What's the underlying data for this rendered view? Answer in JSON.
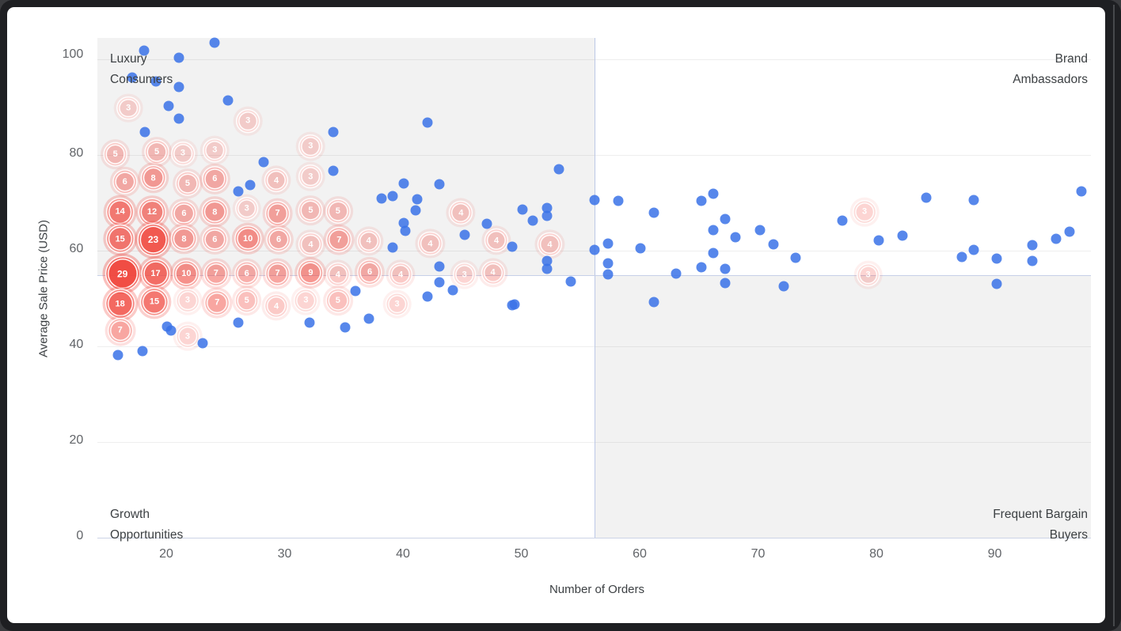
{
  "window": {
    "kind": "chart screenshot frame"
  },
  "quadrant_labels": {
    "top_left": "Luxury Consumers",
    "top_right": "Brand Ambassadors",
    "bottom_left": "Growth Opportunities",
    "bottom_right": "Frequent Bargain Buyers"
  },
  "chart_data": {
    "type": "scatter",
    "xlabel": "Number of Orders",
    "ylabel": "Average Sale Price (USD)",
    "x_ticks": [
      20,
      30,
      40,
      50,
      60,
      70,
      80,
      90
    ],
    "y_ticks": [
      0,
      20,
      40,
      60,
      80,
      100
    ],
    "xlim": [
      14.2,
      98.1
    ],
    "ylim": [
      0,
      104.5
    ],
    "grid": "horizontal-only",
    "legend": "none",
    "colors": {
      "point": "#4285F4",
      "point_opacity": 0.85,
      "cluster_base": "#F04137",
      "quadrant_shade": "rgba(32,33,36,0.057)",
      "divider_line": "#BCC8E6",
      "label_text": "#3C4043",
      "tick_text": "#616468"
    },
    "quadrants": {
      "x_split": 56.2,
      "y_split": 54.9,
      "shaded": [
        "top_left",
        "bottom_right"
      ],
      "top_left": {
        "label": "Luxury Consumers"
      },
      "top_right": {
        "label": "Brand Ambassadors"
      },
      "bottom_left": {
        "label": "Growth Opportunities"
      },
      "bottom_right": {
        "label": "Frequent Bargain Buyers"
      }
    },
    "series": [
      {
        "name": "individual-customers",
        "mark": "point",
        "points": [
          [
            24.1,
            103.5
          ],
          [
            18.1,
            101.8
          ],
          [
            21.1,
            100.3
          ],
          [
            17.1,
            96.2
          ],
          [
            19.1,
            95.4
          ],
          [
            21.1,
            94.2
          ],
          [
            25.2,
            91.4
          ],
          [
            20.2,
            90.2
          ],
          [
            21.1,
            87.6
          ],
          [
            18.2,
            84.8
          ],
          [
            34.1,
            84.8
          ],
          [
            42.1,
            86.8
          ],
          [
            28.2,
            78.5
          ],
          [
            34.1,
            76.7
          ],
          [
            26.1,
            72.4
          ],
          [
            27.1,
            73.7
          ],
          [
            38.2,
            70.9
          ],
          [
            39.1,
            71.4
          ],
          [
            40.1,
            74.0
          ],
          [
            43.1,
            73.9
          ],
          [
            41.2,
            70.7
          ],
          [
            41.1,
            68.4
          ],
          [
            40.1,
            65.8
          ],
          [
            40.2,
            64.1
          ],
          [
            39.1,
            60.7
          ],
          [
            53.2,
            77.0
          ],
          [
            50.1,
            68.6
          ],
          [
            52.2,
            68.9
          ],
          [
            52.2,
            67.3
          ],
          [
            51.0,
            66.3
          ],
          [
            47.1,
            65.6
          ],
          [
            45.2,
            63.3
          ],
          [
            49.2,
            60.8
          ],
          [
            52.2,
            57.9
          ],
          [
            52.2,
            56.2
          ],
          [
            54.2,
            53.6
          ],
          [
            43.1,
            56.7
          ],
          [
            43.1,
            53.4
          ],
          [
            44.2,
            51.7
          ],
          [
            42.1,
            50.4
          ],
          [
            49.2,
            48.6
          ],
          [
            49.4,
            48.8
          ],
          [
            36.0,
            51.6
          ],
          [
            15.9,
            38.2
          ],
          [
            18.0,
            39.0
          ],
          [
            20.1,
            44.1
          ],
          [
            20.4,
            43.3
          ],
          [
            23.1,
            40.7
          ],
          [
            26.1,
            45.0
          ],
          [
            32.1,
            45.0
          ],
          [
            35.1,
            44.0
          ],
          [
            37.1,
            45.8
          ],
          [
            56.2,
            70.6
          ],
          [
            58.2,
            70.4
          ],
          [
            61.2,
            67.9
          ],
          [
            65.2,
            70.4
          ],
          [
            66.2,
            71.9
          ],
          [
            67.2,
            66.6
          ],
          [
            66.2,
            64.3
          ],
          [
            68.1,
            62.8
          ],
          [
            70.2,
            64.3
          ],
          [
            71.3,
            61.3
          ],
          [
            56.2,
            60.2
          ],
          [
            57.3,
            61.5
          ],
          [
            60.1,
            60.5
          ],
          [
            66.2,
            59.5
          ],
          [
            73.2,
            58.5
          ],
          [
            57.3,
            57.4
          ],
          [
            57.3,
            55.0
          ],
          [
            63.1,
            55.2
          ],
          [
            65.2,
            56.5
          ],
          [
            67.2,
            56.2
          ],
          [
            67.2,
            53.2
          ],
          [
            72.2,
            52.6
          ],
          [
            61.2,
            49.3
          ],
          [
            77.1,
            66.3
          ],
          [
            84.2,
            71.1
          ],
          [
            88.2,
            70.6
          ],
          [
            97.3,
            72.4
          ],
          [
            80.2,
            62.1
          ],
          [
            82.2,
            63.1
          ],
          [
            87.2,
            58.7
          ],
          [
            88.2,
            60.2
          ],
          [
            90.2,
            58.3
          ],
          [
            93.2,
            61.2
          ],
          [
            93.2,
            57.9
          ],
          [
            95.2,
            62.5
          ],
          [
            96.3,
            64.0
          ],
          [
            90.2,
            53.1
          ]
        ]
      },
      {
        "name": "clustered-customers",
        "mark": "labeled-bubble",
        "points": [
          {
            "x": 16.8,
            "y": 89.8,
            "count": 3
          },
          {
            "x": 26.9,
            "y": 87.1,
            "count": 3
          },
          {
            "x": 15.7,
            "y": 80.2,
            "count": 5
          },
          {
            "x": 19.2,
            "y": 80.7,
            "count": 5
          },
          {
            "x": 21.4,
            "y": 80.3,
            "count": 3
          },
          {
            "x": 24.1,
            "y": 81.0,
            "count": 3
          },
          {
            "x": 32.2,
            "y": 81.8,
            "count": 3
          },
          {
            "x": 16.5,
            "y": 74.4,
            "count": 6
          },
          {
            "x": 18.9,
            "y": 75.2,
            "count": 8
          },
          {
            "x": 21.8,
            "y": 74.0,
            "count": 5
          },
          {
            "x": 24.1,
            "y": 75.0,
            "count": 6
          },
          {
            "x": 29.3,
            "y": 74.7,
            "count": 4
          },
          {
            "x": 32.2,
            "y": 75.5,
            "count": 3
          },
          {
            "x": 16.1,
            "y": 68.1,
            "count": 14
          },
          {
            "x": 18.8,
            "y": 68.1,
            "count": 12
          },
          {
            "x": 21.5,
            "y": 67.8,
            "count": 6
          },
          {
            "x": 24.1,
            "y": 68.1,
            "count": 8
          },
          {
            "x": 26.8,
            "y": 68.8,
            "count": 3
          },
          {
            "x": 29.4,
            "y": 67.8,
            "count": 7
          },
          {
            "x": 32.2,
            "y": 68.4,
            "count": 5
          },
          {
            "x": 34.5,
            "y": 68.3,
            "count": 5
          },
          {
            "x": 44.9,
            "y": 67.9,
            "count": 4
          },
          {
            "x": 16.1,
            "y": 62.5,
            "count": 15
          },
          {
            "x": 18.9,
            "y": 62.3,
            "count": 23
          },
          {
            "x": 21.5,
            "y": 62.5,
            "count": 8
          },
          {
            "x": 24.1,
            "y": 62.3,
            "count": 6
          },
          {
            "x": 26.9,
            "y": 62.5,
            "count": 10
          },
          {
            "x": 29.5,
            "y": 62.3,
            "count": 6
          },
          {
            "x": 32.2,
            "y": 61.3,
            "count": 4
          },
          {
            "x": 34.6,
            "y": 62.3,
            "count": 7
          },
          {
            "x": 37.1,
            "y": 62.0,
            "count": 4
          },
          {
            "x": 42.3,
            "y": 61.5,
            "count": 4
          },
          {
            "x": 47.9,
            "y": 62.1,
            "count": 4
          },
          {
            "x": 52.4,
            "y": 61.3,
            "count": 4
          },
          {
            "x": 16.3,
            "y": 55.2,
            "count": 29
          },
          {
            "x": 19.1,
            "y": 55.2,
            "count": 17
          },
          {
            "x": 21.7,
            "y": 55.2,
            "count": 10
          },
          {
            "x": 24.2,
            "y": 55.2,
            "count": 7
          },
          {
            "x": 26.8,
            "y": 55.2,
            "count": 6
          },
          {
            "x": 29.4,
            "y": 55.2,
            "count": 7
          },
          {
            "x": 32.2,
            "y": 55.4,
            "count": 9
          },
          {
            "x": 34.5,
            "y": 55.0,
            "count": 4
          },
          {
            "x": 37.2,
            "y": 55.5,
            "count": 6
          },
          {
            "x": 39.8,
            "y": 55.0,
            "count": 4
          },
          {
            "x": 45.2,
            "y": 55.0,
            "count": 3
          },
          {
            "x": 47.6,
            "y": 55.4,
            "count": 4
          },
          {
            "x": 16.1,
            "y": 48.9,
            "count": 18
          },
          {
            "x": 19.0,
            "y": 49.3,
            "count": 15
          },
          {
            "x": 21.8,
            "y": 49.6,
            "count": 3
          },
          {
            "x": 24.3,
            "y": 49.1,
            "count": 7
          },
          {
            "x": 26.8,
            "y": 49.6,
            "count": 5
          },
          {
            "x": 29.3,
            "y": 48.4,
            "count": 4
          },
          {
            "x": 31.8,
            "y": 49.6,
            "count": 3
          },
          {
            "x": 34.5,
            "y": 49.6,
            "count": 5
          },
          {
            "x": 39.5,
            "y": 48.8,
            "count": 3
          },
          {
            "x": 16.1,
            "y": 43.3,
            "count": 7
          },
          {
            "x": 21.8,
            "y": 42.1,
            "count": 3
          },
          {
            "x": 79.0,
            "y": 68.1,
            "count": 3
          },
          {
            "x": 79.3,
            "y": 54.9,
            "count": 3
          }
        ]
      }
    ]
  }
}
